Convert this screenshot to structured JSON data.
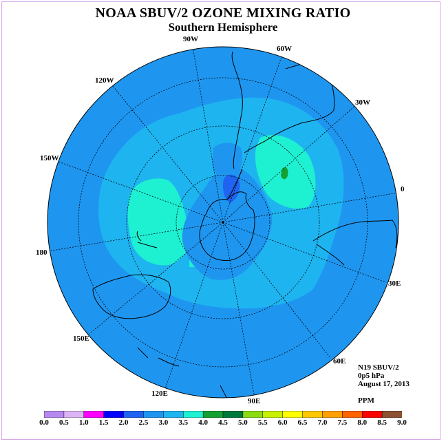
{
  "title": "NOAA SBUV/2 OZONE MIXING RATIO",
  "subtitle": "Southern Hemisphere",
  "longitude_labels": {
    "w90": "90W",
    "w60": "60W",
    "w30": "30W",
    "e0": "0",
    "w120": "120W",
    "w150": "150W",
    "e180": "180",
    "e30": "30E",
    "e60": "60E",
    "e90": "90E",
    "e120": "120E",
    "e150": "150E"
  },
  "info": {
    "instrument": "N19 SBUV/2",
    "level": "0p5 hPa",
    "date": "August 17, 2013",
    "units": "PPM"
  },
  "colorbar": {
    "ticks": [
      "0.0",
      "0.5",
      "1.0",
      "1.5",
      "2.0",
      "2.5",
      "3.0",
      "3.5",
      "4.0",
      "4.5",
      "5.0",
      "5.5",
      "6.0",
      "6.5",
      "7.0",
      "7.5",
      "8.0",
      "8.5",
      "9.0"
    ],
    "colors": [
      "#b787f0",
      "#dcb4f5",
      "#ff00ff",
      "#0000ff",
      "#1e64f0",
      "#1e96f0",
      "#1eb4f0",
      "#1ef0d2",
      "#14a032",
      "#00783c",
      "#8cdc14",
      "#c8f000",
      "#ffff00",
      "#ffc800",
      "#ffa000",
      "#ff6400",
      "#ff0000",
      "#8c5032"
    ]
  },
  "colors": {
    "ocean_level_2_5": "#1e96f0",
    "level_3_0": "#1eb4f0",
    "level_3_5": "#1ef0d2",
    "level_2_0": "#1e64f0",
    "level_4_0": "#14a032",
    "frame": "#d9a6e6"
  }
}
